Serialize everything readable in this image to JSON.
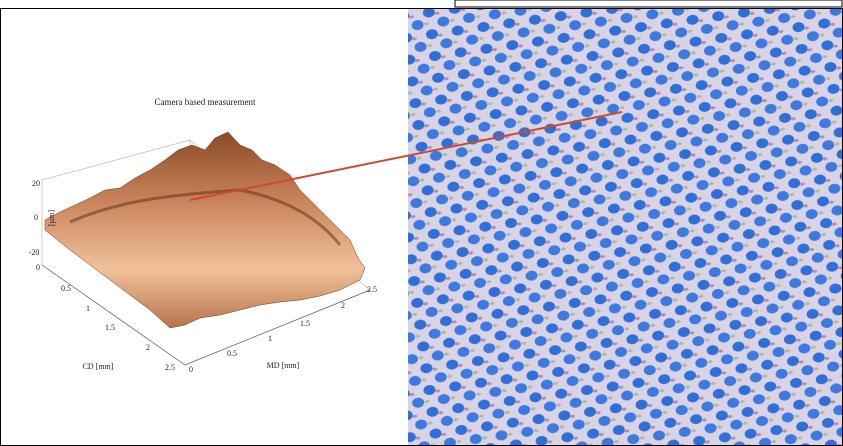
{
  "figure": {
    "plot": {
      "title": "Camera based measurement",
      "z_label": "[µm]",
      "z_ticks": [
        "20",
        "0",
        "-20"
      ],
      "cd_label": "CD [mm]",
      "cd_ticks": [
        "0",
        "0.5",
        "1",
        "1.5",
        "2",
        "2.5"
      ],
      "md_label": "MD [mm]",
      "md_ticks": [
        "0",
        "0.5",
        "1",
        "1.5",
        "2",
        "2.5"
      ]
    }
  }
}
